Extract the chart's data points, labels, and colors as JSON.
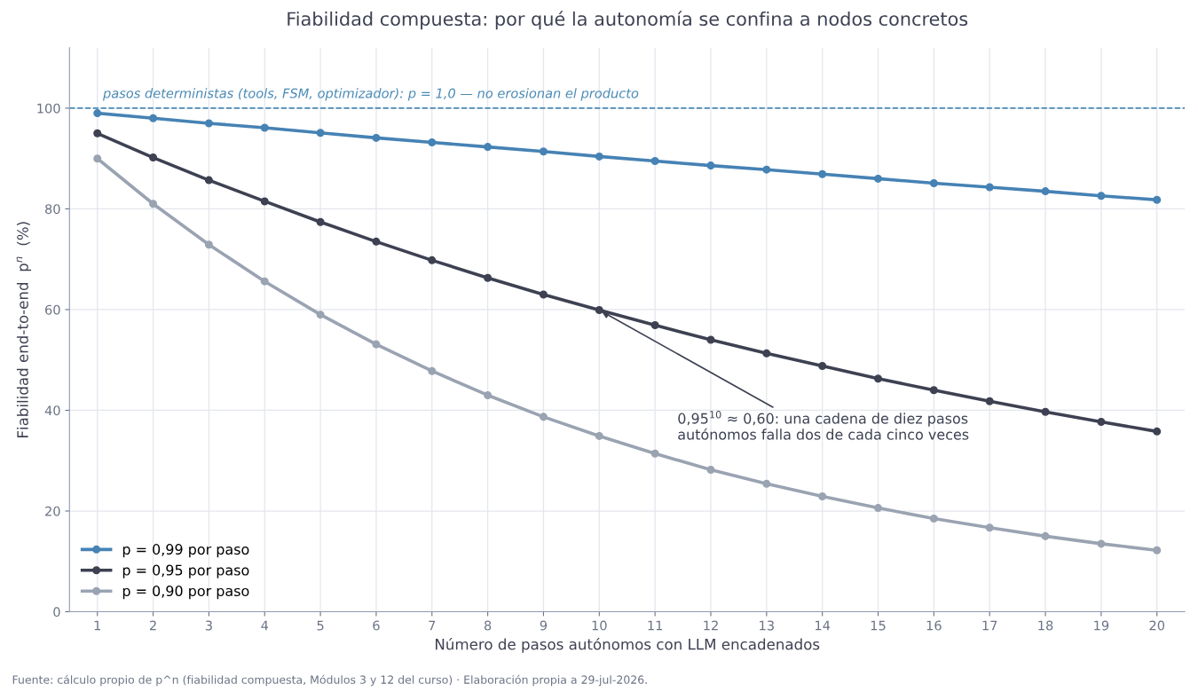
{
  "chart_data": {
    "type": "line",
    "title": "Fiabilidad compuesta: por qué la autonomía se confina a nodos concretos",
    "xlabel": "Número de pasos autónomos con LLM encadenados",
    "ylabel": "Fiabilidad end-to-end  p$^{n}$  (%)",
    "x": [
      1,
      2,
      3,
      4,
      5,
      6,
      7,
      8,
      9,
      10,
      11,
      12,
      13,
      14,
      15,
      16,
      17,
      18,
      19,
      20
    ],
    "series": [
      {
        "name": "p = 0,99 por paso",
        "color": "#4682b4",
        "values": [
          99.0,
          98.0,
          97.0,
          96.1,
          95.1,
          94.1,
          93.2,
          92.3,
          91.4,
          90.4,
          89.5,
          88.6,
          87.8,
          86.9,
          86.0,
          85.1,
          84.3,
          83.5,
          82.6,
          81.8
        ]
      },
      {
        "name": "p = 0,95 por paso",
        "color": "#3d4152",
        "values": [
          95.0,
          90.2,
          85.7,
          81.5,
          77.4,
          73.5,
          69.8,
          66.3,
          63.0,
          59.9,
          56.9,
          54.0,
          51.3,
          48.8,
          46.3,
          44.0,
          41.8,
          39.7,
          37.7,
          35.8
        ]
      },
      {
        "name": "p = 0,90 por paso",
        "color": "#9aa3b2",
        "values": [
          90.0,
          81.0,
          72.9,
          65.6,
          59.0,
          53.1,
          47.8,
          43.0,
          38.7,
          34.9,
          31.4,
          28.2,
          25.4,
          22.9,
          20.6,
          18.5,
          16.7,
          15.0,
          13.5,
          12.2
        ]
      }
    ],
    "xlim": [
      0.5,
      20.5
    ],
    "xticks": [
      1,
      2,
      3,
      4,
      5,
      6,
      7,
      8,
      9,
      10,
      11,
      12,
      13,
      14,
      15,
      16,
      17,
      18,
      19,
      20
    ],
    "ylim": [
      0,
      112
    ],
    "yticks": [
      0,
      20,
      40,
      60,
      80,
      100
    ],
    "ref_lines": [
      {
        "axis": "y",
        "value": 100,
        "color": "#4a8ab5",
        "line_style": "dashed"
      }
    ],
    "annotations": [
      {
        "text": "pasos deterministas (tools, FSM, optimizador): p = 1,0 — no erosionan el producto",
        "x": 1.1,
        "y": 100
      },
      {
        "text": "0,95$^{10}$ ≈ 0,60: una cadena de diez pasos\nautónomos falla dos de cada cinco veces",
        "x": 10,
        "y": 59.9
      },
      "Fuente: cálculo propio de p^n (fiabilidad compuesta, Módulos 3 y 12 del curso) · Elaboración propia a 29-jul-2026."
    ],
    "grid": true,
    "legend": "bottom left",
    "marker": "circle",
    "line_style": "solid"
  }
}
